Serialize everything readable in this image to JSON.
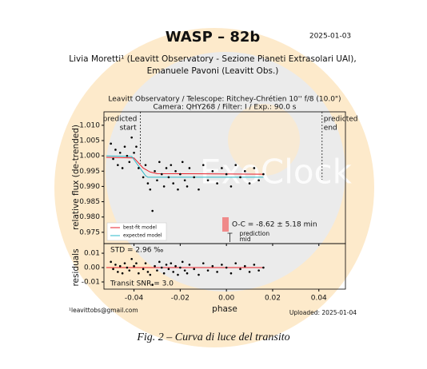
{
  "header": {
    "title": "WASP – 82b",
    "date": "2025-01-03",
    "authors": [
      "Livia Moretti¹ (Leavitt Observatory - Sezione Pianeti Extrasolari UAI),",
      "Emanuele Pavoni (Leavitt Obs.)"
    ]
  },
  "watermark": "ExoClock",
  "chart_data": [
    {
      "type": "scatter",
      "subtitle": [
        "Leavitt Observatory / Telescope: Ritchey-Chrétien 10'' f/8 (10.0\")",
        "Camera: QHY268 / Filter: I / Exp.: 90.0 s"
      ],
      "ylabel": "relative flux (de-trended)",
      "xlim": [
        -0.053,
        0.0515
      ],
      "ylim": [
        0.9713,
        1.0144
      ],
      "yticks": [
        {
          "value": 1.01,
          "label": "1.010"
        },
        1.005,
        {
          "value": 1.0,
          "label": "1.000"
        },
        0.995,
        {
          "value": 0.99,
          "label": "0.990"
        },
        0.985,
        {
          "value": 0.98,
          "label": "0.980"
        },
        0.975
      ],
      "color": "#000000",
      "x": [
        -0.05,
        -0.049,
        -0.048,
        -0.047,
        -0.046,
        -0.045,
        -0.044,
        -0.043,
        -0.042,
        -0.041,
        -0.04,
        -0.039,
        -0.038,
        -0.036,
        -0.035,
        -0.034,
        -0.033,
        -0.032,
        -0.031,
        -0.03,
        -0.029,
        -0.028,
        -0.027,
        -0.026,
        -0.025,
        -0.024,
        -0.023,
        -0.022,
        -0.021,
        -0.02,
        -0.019,
        -0.018,
        -0.017,
        -0.016,
        -0.014,
        -0.012,
        -0.01,
        -0.008,
        -0.006,
        -0.004,
        -0.002,
        0.0,
        0.002,
        0.004,
        0.006,
        0.008,
        0.01,
        0.012,
        0.014,
        0.016
      ],
      "values": [
        1.004,
        0.999,
        1.002,
        0.997,
        1.001,
        0.996,
        1.003,
        1.0,
        0.998,
        1.006,
        1.001,
        1.003,
        0.996,
        0.993,
        0.997,
        0.991,
        0.989,
        0.982,
        0.995,
        0.992,
        0.998,
        0.994,
        0.99,
        0.996,
        0.993,
        0.997,
        0.991,
        0.995,
        0.989,
        0.994,
        0.998,
        0.992,
        0.99,
        0.996,
        0.993,
        0.989,
        0.997,
        0.992,
        0.995,
        0.991,
        0.996,
        0.994,
        0.99,
        0.997,
        0.993,
        0.995,
        0.991,
        0.996,
        0.992,
        0.994
      ],
      "lines": [
        {
          "name": "best-fit model",
          "color": "#e8202a",
          "x": [
            -0.052,
            -0.04,
            -0.036,
            -0.033,
            -0.03,
            0.016
          ],
          "values": [
            0.9995,
            0.9993,
            0.996,
            0.9947,
            0.9942,
            0.994
          ]
        },
        {
          "name": "expected model",
          "color": "#2bb8c8",
          "x": [
            -0.052,
            -0.041,
            -0.035,
            -0.034,
            0.016
          ],
          "values": [
            1.0,
            0.9998,
            0.9935,
            0.993,
            0.993
          ]
        }
      ],
      "legend": "lower left",
      "markers": [
        {
          "label": [
            "predicted",
            "start"
          ],
          "x": -0.0372
        },
        {
          "label": [
            "predicted",
            "end"
          ],
          "x": 0.0414
        },
        {
          "label": [
            "prediction",
            "mid"
          ],
          "x": 0.0015
        }
      ],
      "annotation": "O-C = -8.62 ± 5.18 min"
    },
    {
      "type": "scatter",
      "ylabel": "residuals",
      "xlabel": "phase",
      "xlim": [
        -0.053,
        0.0515
      ],
      "ylim": [
        -0.015,
        0.0167
      ],
      "xticks": [
        -0.04,
        -0.02,
        {
          "value": 0,
          "label": "0.00"
        },
        0.02,
        0.04
      ],
      "yticks": [
        0.01,
        {
          "value": 0,
          "label": "0.00"
        },
        -0.01
      ],
      "color": "#000000",
      "x": [
        -0.05,
        -0.049,
        -0.048,
        -0.047,
        -0.046,
        -0.045,
        -0.044,
        -0.043,
        -0.042,
        -0.041,
        -0.04,
        -0.039,
        -0.038,
        -0.036,
        -0.035,
        -0.034,
        -0.033,
        -0.032,
        -0.031,
        -0.03,
        -0.029,
        -0.028,
        -0.027,
        -0.026,
        -0.025,
        -0.024,
        -0.023,
        -0.022,
        -0.021,
        -0.02,
        -0.019,
        -0.018,
        -0.017,
        -0.016,
        -0.014,
        -0.012,
        -0.01,
        -0.008,
        -0.006,
        -0.004,
        -0.002,
        0.0,
        0.002,
        0.004,
        0.006,
        0.008,
        0.01,
        0.012,
        0.014,
        0.016
      ],
      "values": [
        0.004,
        -0.001,
        0.002,
        -0.003,
        0.001,
        -0.004,
        0.003,
        0,
        -0.002,
        0.006,
        0.001,
        0.003,
        -0.004,
        -0.001,
        0.003,
        -0.003,
        -0.005,
        -0.012,
        0.001,
        -0.002,
        0.004,
        0,
        -0.004,
        0.002,
        -0.001,
        0.003,
        -0.003,
        0.001,
        -0.005,
        0,
        0.004,
        -0.002,
        -0.004,
        0.002,
        -0.001,
        -0.005,
        0.003,
        -0.002,
        0.001,
        -0.003,
        0.002,
        0,
        -0.004,
        0.003,
        -0.001,
        0.001,
        -0.003,
        0.002,
        -0.002,
        0
      ],
      "lines": [
        {
          "color": "#e8202a",
          "x": [
            -0.052,
            0.016
          ],
          "values": [
            0,
            0
          ]
        }
      ],
      "annotations": [
        "STD = 2.96 ‰",
        "Transit SNR = 3.0"
      ]
    }
  ],
  "footer": {
    "email": "¹leavittobs@gmail.com",
    "uploaded": "Uploaded: 2025-01-04"
  },
  "caption": "Fig. 2 – Curva di luce del transito"
}
